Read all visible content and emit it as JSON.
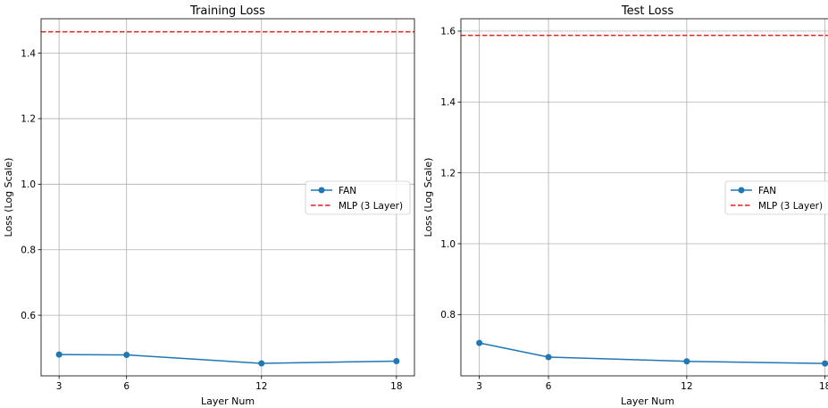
{
  "chart_data": [
    {
      "type": "line",
      "title": "Training Loss",
      "xlabel": "Layer Num",
      "ylabel": "Loss (Log Scale)",
      "x": [
        3,
        6,
        12,
        18
      ],
      "xticks": [
        "3",
        "6",
        "12",
        "18"
      ],
      "yticks": [
        "0.6",
        "0.8",
        "1.0",
        "1.2",
        "1.4"
      ],
      "xlim": [
        2.2,
        18.8
      ],
      "ylim": [
        0.415,
        1.505
      ],
      "grid": true,
      "legend_position": "center-right",
      "series": [
        {
          "name": "FAN",
          "values": [
            0.48,
            0.479,
            0.453,
            0.46
          ],
          "color": "#1f77b4",
          "style": "solid-marker"
        },
        {
          "name": "MLP (3 Layer)",
          "constant": 1.465,
          "color": "#d62728",
          "style": "dashed"
        }
      ]
    },
    {
      "type": "line",
      "title": "Test Loss",
      "xlabel": "Layer Num",
      "ylabel": "Loss (Log Scale)",
      "x": [
        3,
        6,
        12,
        18
      ],
      "xticks": [
        "3",
        "6",
        "12",
        "18"
      ],
      "yticks": [
        "0.8",
        "1.0",
        "1.2",
        "1.4",
        "1.6"
      ],
      "xlim": [
        2.2,
        18.4
      ],
      "ylim": [
        0.627,
        1.635
      ],
      "grid": true,
      "legend_position": "center-right",
      "series": [
        {
          "name": "FAN",
          "values": [
            0.72,
            0.68,
            0.668,
            0.662
          ],
          "color": "#1f77b4",
          "style": "solid-marker"
        },
        {
          "name": "MLP (3 Layer)",
          "constant": 1.588,
          "color": "#d62728",
          "style": "dashed"
        }
      ]
    }
  ]
}
